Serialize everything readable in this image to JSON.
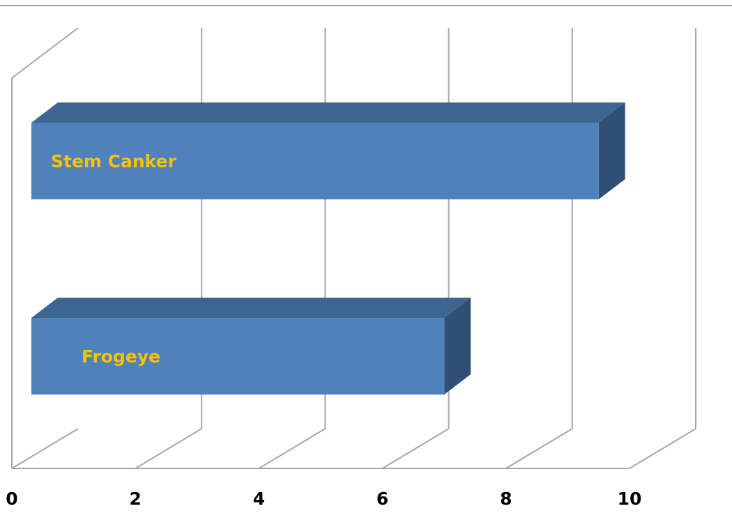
{
  "chart_data": {
    "type": "bar",
    "orientation": "horizontal",
    "style": "3d",
    "categories": [
      "Stem Canker",
      "Frogeye"
    ],
    "values": [
      9.5,
      7.0
    ],
    "xlim": [
      0,
      10
    ],
    "xticks": [
      0,
      2,
      4,
      6,
      8,
      10
    ],
    "tick_labels": [
      "0",
      "2",
      "4",
      "6",
      "8",
      "10"
    ],
    "grid": true,
    "legend": "none",
    "title": "",
    "xlabel": "",
    "ylabel": "",
    "colors": {
      "bar_front": "#4f81bd",
      "bar_top": "#3d6591",
      "bar_side": "#2f5075",
      "bar_label": "#ffc000",
      "axis_text": "#000000",
      "grid": "#a6a6a6"
    }
  }
}
